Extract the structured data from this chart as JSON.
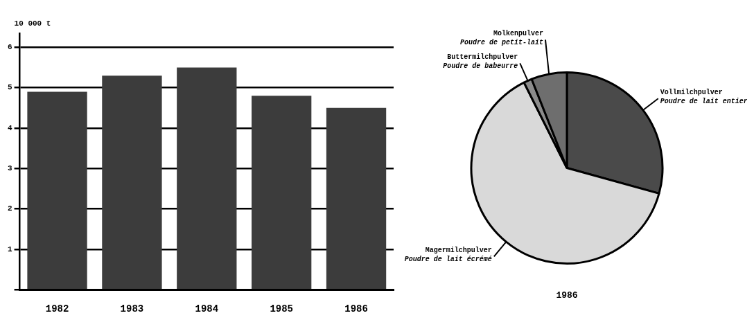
{
  "chart_data": [
    {
      "type": "bar",
      "ylabel": "10 000 t",
      "categories": [
        "1982",
        "1983",
        "1984",
        "1985",
        "1986"
      ],
      "values": [
        4.9,
        5.3,
        5.5,
        4.8,
        4.5
      ],
      "color": "#3c3c3c",
      "ylim": [
        0,
        6.35
      ],
      "yticks": [
        {
          "value": 0,
          "label": null
        },
        1,
        2,
        3,
        4,
        5,
        6
      ],
      "grid": "y",
      "legend": false
    },
    {
      "type": "pie",
      "title": "1986",
      "categories": [
        "Vollmilchpulver\nPoudre de lait entier",
        "Magermilchpulver\nPoudre de lait écrémé",
        "Buttermilchpulver\nPoudre de babeurre",
        "Molkenpulver\nPoudre de petit-lait"
      ],
      "values": [
        29.3,
        63.3,
        1.4,
        6.0
      ],
      "colors": [
        "#4a4a4a",
        "#d9d9d9",
        "#8c8c8c",
        "#6e6e6e"
      ],
      "legend": false
    }
  ]
}
